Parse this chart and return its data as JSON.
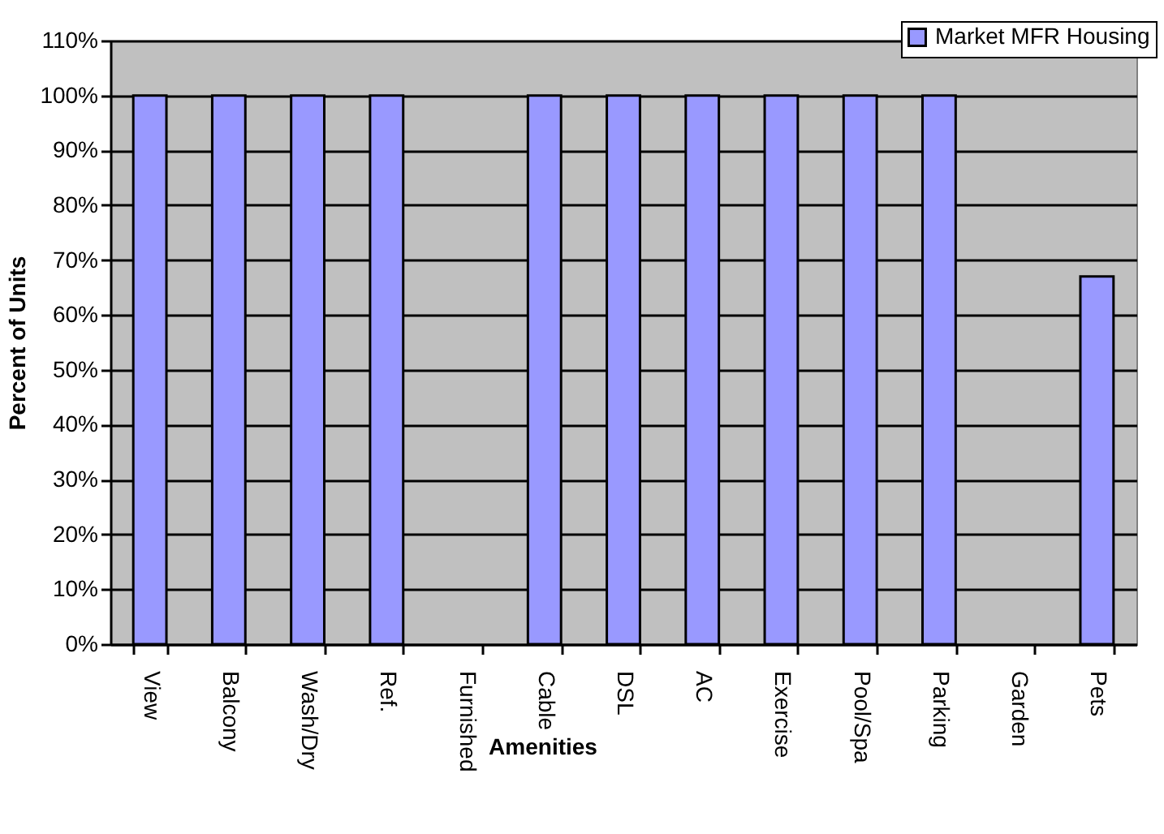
{
  "chart_data": {
    "type": "bar",
    "xlabel": "Amenities",
    "ylabel": "Percent of Units",
    "categories": [
      "View",
      "Balcony",
      "Wash/Dry",
      "Ref.",
      "Furnished",
      "Cable",
      "DSL",
      "AC",
      "Exercise",
      "Pool/Spa",
      "Parking",
      "Garden",
      "Pets"
    ],
    "series": [
      {
        "name": "Market MFR Housing",
        "color": "#9999ff",
        "values": [
          100,
          100,
          100,
          100,
          0,
          100,
          100,
          100,
          100,
          100,
          100,
          0,
          67
        ]
      }
    ],
    "ylim": [
      0,
      110
    ],
    "yticks": [
      {
        "value": 0,
        "label": "0%"
      },
      {
        "value": 10,
        "label": "10%"
      },
      {
        "value": 20,
        "label": "20%"
      },
      {
        "value": 30,
        "label": "30%"
      },
      {
        "value": 40,
        "label": "40%"
      },
      {
        "value": 50,
        "label": "50%"
      },
      {
        "value": 60,
        "label": "60%"
      },
      {
        "value": 70,
        "label": "70%"
      },
      {
        "value": 80,
        "label": "80%"
      },
      {
        "value": 90,
        "label": "90%"
      },
      {
        "value": 100,
        "label": "100%"
      },
      {
        "value": 110,
        "label": "110%"
      }
    ],
    "grid": "y",
    "legend": "top right"
  }
}
